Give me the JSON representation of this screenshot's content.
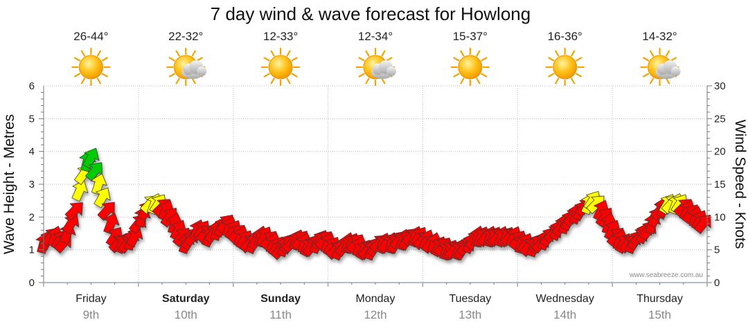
{
  "chart_data": {
    "type": "line",
    "title": "7 day wind & wave forecast for Howlong",
    "ylabel_left": "Wave Height - Metres",
    "ylabel_right": "Wind Speed - Knots",
    "ylim_left": [
      0,
      6
    ],
    "ylim_right": [
      0,
      30
    ],
    "yticks_left": [
      "0",
      "1",
      "2",
      "3",
      "4",
      "5",
      "6"
    ],
    "yticks_right": [
      "0",
      "5",
      "10",
      "15",
      "20",
      "25",
      "30"
    ],
    "grid": true,
    "watermark": "www.seabreeze.com.au",
    "days": [
      {
        "name": "Friday",
        "date": "9th",
        "bold": false,
        "temp": "26-44°",
        "weather": "sunny-icon"
      },
      {
        "name": "Saturday",
        "date": "10th",
        "bold": true,
        "temp": "22-32°",
        "weather": "partly-cloudy-icon"
      },
      {
        "name": "Sunday",
        "date": "11th",
        "bold": true,
        "temp": "12-33°",
        "weather": "sunny-icon"
      },
      {
        "name": "Monday",
        "date": "12th",
        "bold": false,
        "temp": "12-34°",
        "weather": "partly-cloudy-icon"
      },
      {
        "name": "Tuesday",
        "date": "13th",
        "bold": false,
        "temp": "15-37°",
        "weather": "sunny-icon"
      },
      {
        "name": "Wednesday",
        "date": "14th",
        "bold": false,
        "temp": "16-36°",
        "weather": "sunny-icon"
      },
      {
        "name": "Thursday",
        "date": "15th",
        "bold": false,
        "temp": "14-32°",
        "weather": "partly-cloudy-icon"
      }
    ],
    "series": [
      {
        "unit": "knots",
        "x": [
          0,
          0.04,
          0.08,
          0.12,
          0.17,
          0.21,
          0.25,
          0.29,
          0.33,
          0.38,
          0.42,
          0.46,
          0.5,
          0.54,
          0.58,
          0.62,
          0.67,
          0.71,
          0.75,
          0.79,
          0.83,
          0.88,
          0.92,
          0.96,
          1,
          1.04,
          1.08,
          1.12,
          1.17,
          1.21,
          1.25,
          1.29,
          1.33,
          1.38,
          1.42,
          1.46,
          1.5,
          1.54,
          1.58,
          1.62,
          1.67,
          1.71,
          1.75,
          1.79,
          1.83,
          1.88,
          1.92,
          1.96,
          2,
          2.04,
          2.08,
          2.12,
          2.17,
          2.21,
          2.25,
          2.29,
          2.33,
          2.38,
          2.42,
          2.46,
          2.5,
          2.54,
          2.58,
          2.62,
          2.67,
          2.71,
          2.75,
          2.79,
          2.83,
          2.88,
          2.92,
          2.96,
          3,
          3.04,
          3.08,
          3.12,
          3.17,
          3.21,
          3.25,
          3.29,
          3.33,
          3.38,
          3.42,
          3.46,
          3.5,
          3.54,
          3.58,
          3.62,
          3.67,
          3.71,
          3.75,
          3.79,
          3.83,
          3.88,
          3.92,
          3.96,
          4,
          4.04,
          4.08,
          4.12,
          4.17,
          4.21,
          4.25,
          4.29,
          4.33,
          4.38,
          4.42,
          4.46,
          4.5,
          4.54,
          4.58,
          4.62,
          4.67,
          4.71,
          4.75,
          4.79,
          4.83,
          4.88,
          4.92,
          4.96,
          5,
          5.04,
          5.08,
          5.12,
          5.17,
          5.21,
          5.25,
          5.29,
          5.33,
          5.38,
          5.42,
          5.46,
          5.5,
          5.54,
          5.58,
          5.62,
          5.67,
          5.71,
          5.75,
          5.79,
          5.83,
          5.88,
          5.92,
          5.96,
          6,
          6.04,
          6.08,
          6.12,
          6.17,
          6.21,
          6.25,
          6.29,
          6.33,
          6.38,
          6.42,
          6.46,
          6.5,
          6.54,
          6.58,
          6.62,
          6.67,
          6.71,
          6.75,
          6.79,
          6.83,
          6.88,
          6.92,
          6.96
        ],
        "values": [
          6,
          6.5,
          7,
          7,
          6.5,
          6,
          7.5,
          9,
          11,
          14,
          16.5,
          18.5,
          19,
          17,
          15,
          13,
          11,
          9,
          7,
          6,
          6,
          6,
          6.5,
          7,
          9,
          10,
          11,
          12,
          12,
          12,
          11.5,
          11,
          10,
          9,
          8,
          7,
          6,
          6.5,
          7,
          8,
          8,
          7.5,
          7,
          7.5,
          8,
          8.5,
          9,
          8.5,
          8,
          7.5,
          7,
          6.5,
          6,
          6,
          6.5,
          7,
          7,
          6.5,
          6,
          5.5,
          5,
          5.5,
          6,
          6,
          6.5,
          6.5,
          6,
          5.5,
          5.5,
          6,
          6.5,
          6.5,
          6,
          5.5,
          5,
          5,
          5.5,
          6,
          6,
          6,
          5.5,
          5,
          5,
          5,
          5.5,
          6,
          6,
          6,
          6,
          6,
          6.5,
          6.5,
          6.5,
          7,
          7,
          7,
          6.5,
          6.5,
          6,
          6,
          5.5,
          5.5,
          5,
          5,
          5,
          5,
          5,
          5.5,
          6,
          6.5,
          7,
          7,
          7,
          7,
          7,
          7,
          7,
          7,
          7,
          7,
          6.5,
          6,
          6,
          5.5,
          5.5,
          6,
          6,
          6.5,
          7,
          7.5,
          8,
          8.5,
          9,
          9.5,
          10,
          10.5,
          11,
          11.5,
          12,
          12.5,
          12,
          11,
          10,
          9,
          8,
          7,
          6.5,
          6,
          6,
          6,
          6.5,
          7,
          7.5,
          8,
          9,
          10,
          11,
          11.5,
          12,
          12,
          12,
          12,
          11.5,
          11,
          10.5,
          10,
          9.5,
          9
        ],
        "directions_deg": [
          60,
          60,
          60,
          60,
          60,
          60,
          60,
          60,
          60,
          60,
          60,
          60,
          60,
          60,
          60,
          60,
          60,
          60,
          60,
          60,
          60,
          60,
          60,
          60,
          60,
          60,
          60,
          60,
          60,
          60,
          60,
          60,
          60,
          60,
          60,
          60,
          60,
          60,
          60,
          60,
          60,
          60,
          60,
          60,
          60,
          60,
          60,
          60,
          60,
          60,
          60,
          60,
          60,
          60,
          60,
          60,
          60,
          60,
          60,
          60,
          60,
          60,
          60,
          60,
          60,
          60,
          60,
          60,
          60,
          60,
          60,
          60,
          60,
          60,
          60,
          60,
          60,
          60,
          60,
          60,
          60,
          60,
          60,
          60,
          60,
          60,
          60,
          60,
          60,
          60,
          60,
          60,
          60,
          60,
          60,
          60,
          60,
          60,
          60,
          60,
          60,
          60,
          60,
          60,
          60,
          60,
          60,
          60,
          60,
          60,
          60,
          60,
          60,
          60,
          60,
          60,
          60,
          60,
          60,
          60,
          60,
          60,
          60,
          60,
          60,
          60,
          60,
          60,
          60,
          60,
          60,
          60,
          60,
          60,
          60,
          60,
          60,
          60,
          60,
          60,
          60,
          60,
          60,
          60,
          60,
          60,
          60,
          60,
          60,
          60,
          60,
          60,
          60,
          60,
          60,
          60,
          60,
          60,
          60,
          60,
          60,
          60,
          60,
          60,
          60,
          60,
          60,
          60
        ]
      }
    ],
    "colors": {
      "calm": "#ff0000",
      "moderate": "#ffff00",
      "strong": "#00cc00",
      "grid": "#bfbfbf",
      "axis": "#777777",
      "day_divider": "#9aa6b2"
    }
  }
}
